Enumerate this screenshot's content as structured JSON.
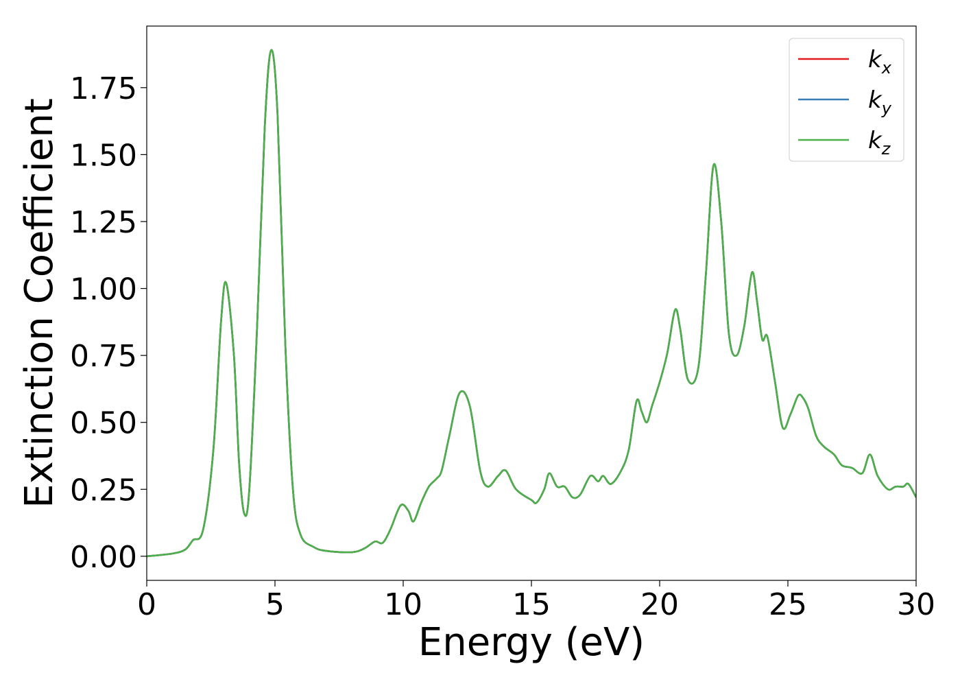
{
  "chart_data": {
    "type": "line",
    "title": "",
    "xlabel": "Energy (eV)",
    "ylabel": "Extinction Coefficient",
    "xlim": [
      0,
      30
    ],
    "ylim": [
      -0.09,
      1.98
    ],
    "xticks": [
      "0",
      "5",
      "10",
      "15",
      "20",
      "25",
      "30"
    ],
    "xtick_values": [
      0,
      5,
      10,
      15,
      20,
      25,
      30
    ],
    "yticks": [
      "0.00",
      "0.25",
      "0.50",
      "0.75",
      "1.00",
      "1.25",
      "1.50",
      "1.75"
    ],
    "ytick_values": [
      0,
      0.25,
      0.5,
      0.75,
      1.0,
      1.25,
      1.5,
      1.75
    ],
    "grid": false,
    "legend_position": "top-right",
    "series": [
      {
        "name": "k_x",
        "base": "k",
        "sub": "x",
        "color": "#e41a1c",
        "x": [
          0,
          1,
          1.5,
          1.8,
          2.2,
          2.6,
          2.9,
          3.1,
          3.4,
          3.6,
          3.8,
          4.0,
          4.3,
          4.6,
          4.85,
          5.1,
          5.4,
          5.7,
          6.0,
          6.5,
          7.0,
          8.0,
          8.5,
          8.9,
          9.2,
          9.5,
          9.9,
          10.2,
          10.4,
          10.7,
          11.0,
          11.3,
          11.5,
          11.8,
          12.2,
          12.6,
          13.0,
          13.3,
          13.7,
          14.0,
          14.4,
          15.0,
          15.2,
          15.5,
          15.7,
          16.0,
          16.3,
          16.6,
          16.9,
          17.3,
          17.6,
          17.8,
          18.1,
          18.5,
          18.8,
          19.1,
          19.3,
          19.5,
          19.7,
          20.0,
          20.3,
          20.6,
          20.8,
          21.1,
          21.5,
          21.8,
          22.1,
          22.4,
          22.7,
          23.0,
          23.3,
          23.6,
          23.8,
          24.0,
          24.2,
          24.5,
          24.8,
          25.1,
          25.4,
          25.6,
          25.8,
          26.1,
          26.4,
          26.8,
          27.1,
          27.5,
          27.9,
          28.2,
          28.5,
          28.9,
          29.2,
          29.5,
          29.7,
          30.0
        ],
        "y": [
          0,
          0.01,
          0.025,
          0.06,
          0.1,
          0.4,
          0.88,
          1.02,
          0.75,
          0.35,
          0.16,
          0.25,
          0.85,
          1.6,
          1.89,
          1.65,
          0.8,
          0.25,
          0.08,
          0.035,
          0.02,
          0.015,
          0.03,
          0.055,
          0.05,
          0.1,
          0.19,
          0.17,
          0.13,
          0.2,
          0.26,
          0.29,
          0.32,
          0.45,
          0.61,
          0.56,
          0.32,
          0.26,
          0.3,
          0.32,
          0.25,
          0.21,
          0.2,
          0.25,
          0.31,
          0.26,
          0.26,
          0.22,
          0.23,
          0.3,
          0.28,
          0.3,
          0.27,
          0.32,
          0.4,
          0.58,
          0.54,
          0.5,
          0.56,
          0.65,
          0.76,
          0.92,
          0.85,
          0.66,
          0.7,
          1.05,
          1.46,
          1.25,
          0.83,
          0.75,
          0.86,
          1.06,
          0.95,
          0.81,
          0.82,
          0.65,
          0.48,
          0.53,
          0.6,
          0.59,
          0.55,
          0.45,
          0.41,
          0.38,
          0.34,
          0.33,
          0.31,
          0.38,
          0.3,
          0.25,
          0.26,
          0.26,
          0.27,
          0.22
        ]
      },
      {
        "name": "k_y",
        "base": "k",
        "sub": "y",
        "color": "#377eb8",
        "same_as": "k_x"
      },
      {
        "name": "k_z",
        "base": "k",
        "sub": "z",
        "color": "#4daf4a",
        "same_as": "k_x"
      }
    ]
  }
}
